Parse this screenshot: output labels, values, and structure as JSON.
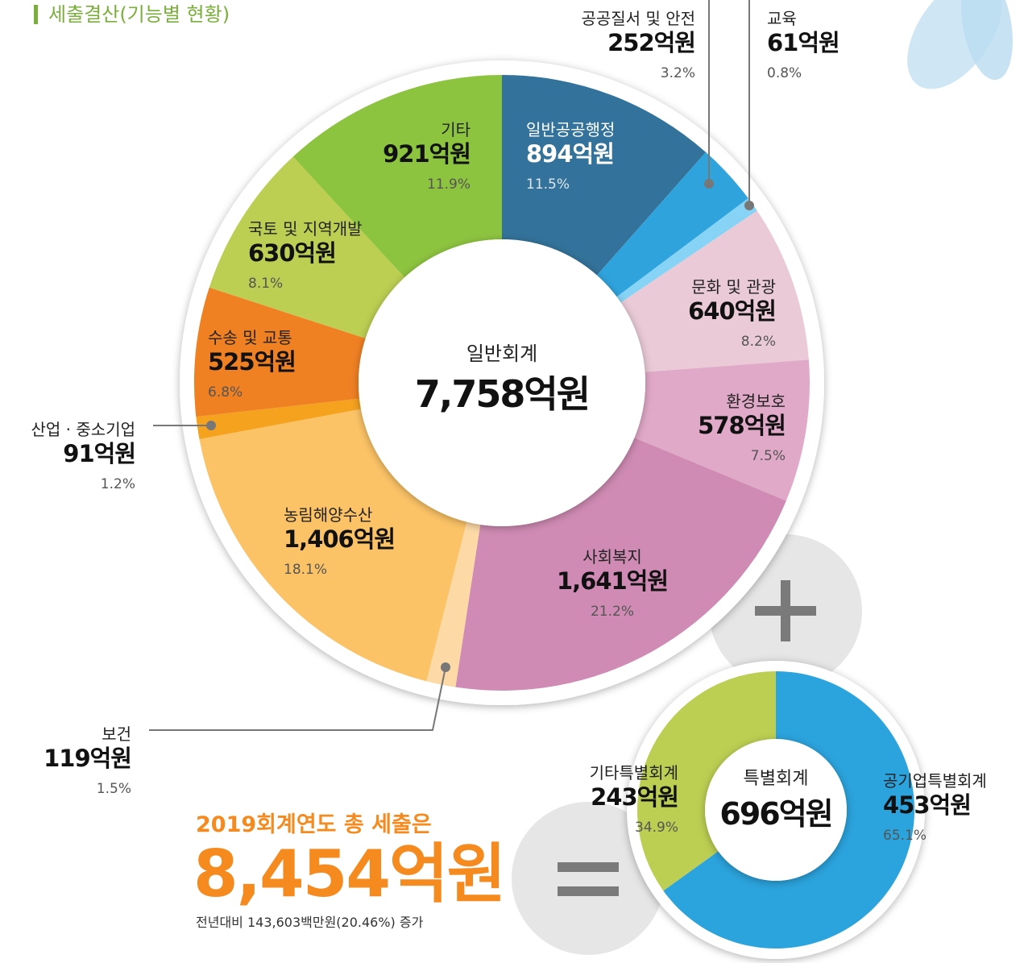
{
  "title": "세출결산(기능별 현황)",
  "chart_data": [
    {
      "type": "pie",
      "center_label": "일반회계",
      "center_value": "7,758억원",
      "categories": [
        "일반공공행정",
        "공공질서 및 안전",
        "교육",
        "문화 및 관광",
        "환경보호",
        "사회복지",
        "보건",
        "농림해양수산",
        "산업 · 중소기업",
        "수송 및 교통",
        "국토 및 지역개발",
        "기타"
      ],
      "values": [
        894,
        252,
        61,
        640,
        578,
        1641,
        119,
        1406,
        91,
        525,
        630,
        921
      ],
      "value_labels": [
        "894억원",
        "252억원",
        "61억원",
        "640억원",
        "578억원",
        "1,641억원",
        "119억원",
        "1,406억원",
        "91억원",
        "525억원",
        "630억원",
        "921억원"
      ],
      "percent_labels": [
        "11.5%",
        "3.2%",
        "0.8%",
        "8.2%",
        "7.5%",
        "21.2%",
        "1.5%",
        "18.1%",
        "1.2%",
        "6.8%",
        "8.1%",
        "11.9%"
      ],
      "colors": [
        "#33729a",
        "#2fa3dc",
        "#86d3f5",
        "#e9cad6",
        "#e0a9c7",
        "#cf8bb3",
        "#fdd9a6",
        "#fcc366",
        "#f5a21f",
        "#f08123",
        "#bccf52",
        "#8dc43f"
      ]
    },
    {
      "type": "pie",
      "center_label": "특별회계",
      "center_value": "696억원",
      "categories": [
        "공기업특별회계",
        "기타특별회계"
      ],
      "values": [
        453,
        243
      ],
      "value_labels": [
        "453억원",
        "243억원"
      ],
      "percent_labels": [
        "65.1%",
        "34.9%"
      ],
      "colors": [
        "#2ba3dc",
        "#bccf52"
      ]
    }
  ],
  "summary": {
    "headline": "2019회계연도 총 세출은",
    "total": "8,454억원",
    "note": "전년대비 143,603백만원(20.46%) 증가"
  }
}
